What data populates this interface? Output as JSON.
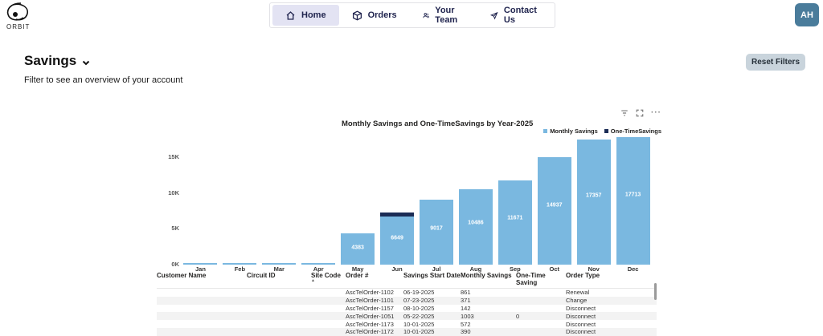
{
  "topbar": {
    "logo_text": "ORBIT",
    "nav": [
      {
        "label": "Home",
        "active": true
      },
      {
        "label": "Orders",
        "active": false
      },
      {
        "label": "Your Team",
        "active": false
      },
      {
        "label": "Contact Us",
        "active": false
      }
    ],
    "avatar_initials": "AH"
  },
  "page": {
    "title": "Savings",
    "subtitle": "Filter to see an overview of your account",
    "reset_button_label": "Reset Filters"
  },
  "chart_data": {
    "type": "bar",
    "stacked": true,
    "title": "Monthly Savings and One-TimeSavings by Year-2025",
    "categories": [
      "Jan",
      "Feb",
      "Mar",
      "Apr",
      "May",
      "Jun",
      "Jul",
      "Aug",
      "Sep",
      "Oct",
      "Nov",
      "Dec"
    ],
    "series": [
      {
        "name": "Monthly Savings",
        "color": "#7ab8e0",
        "values": [
          200,
          200,
          200,
          200,
          4383,
          6649,
          9017,
          10486,
          11671,
          14937,
          17357,
          17713
        ]
      },
      {
        "name": "One-TimeSavings",
        "color": "#1b2c55",
        "values": [
          0,
          0,
          0,
          0,
          0,
          550,
          0,
          0,
          0,
          0,
          0,
          0
        ]
      }
    ],
    "bar_labels": [
      "",
      "",
      "",
      "",
      "4383",
      "6649",
      "9017",
      "10486",
      "11671",
      "14937",
      "17357",
      "17713"
    ],
    "yticks": [
      "15K",
      "10K",
      "5K",
      "0K"
    ],
    "ylim": [
      0,
      18000
    ],
    "grid": false,
    "legend_position": "top-right"
  },
  "table": {
    "columns": [
      "Customer Name",
      "Circuit ID",
      "Site Code",
      "Order #",
      "Savings Start Date",
      "Monthly Savings",
      "One-Time Saving",
      "Order Type"
    ],
    "sorted_column_index": 2,
    "sort_indicator": "▲",
    "rows": [
      [
        "",
        "",
        "",
        "AscTelOrder-1102",
        "06-19-2025",
        "861",
        "",
        "Renewal"
      ],
      [
        "",
        "",
        "",
        "AscTelOrder-1101",
        "07-23-2025",
        "371",
        "",
        "Change"
      ],
      [
        "",
        "",
        "",
        "AscTelOrder-1157",
        "08-10-2025",
        "142",
        "",
        "Disconnect"
      ],
      [
        "",
        "",
        "",
        "AscTelOrder-1051",
        "05-22-2025",
        "1003",
        "0",
        "Disconnect"
      ],
      [
        "",
        "",
        "",
        "AscTelOrder-1173",
        "10-01-2025",
        "572",
        "",
        "Disconnect"
      ],
      [
        "",
        "",
        "",
        "AscTelOrder-1172",
        "10-01-2025",
        "390",
        "",
        "Disconnect"
      ]
    ]
  },
  "colors": {
    "accent_bar": "#7ab8e0",
    "accent_dark": "#1b2c55",
    "nav_active_bg": "#e3e3f3",
    "avatar_bg": "#4a7c9b",
    "reset_btn_bg": "#c9d4dc",
    "row_alt_bg": "#f3f3f3"
  }
}
